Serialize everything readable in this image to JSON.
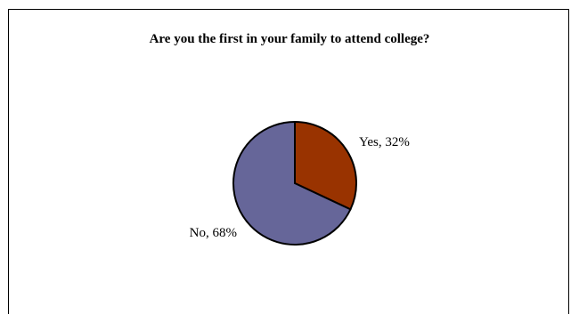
{
  "chart_data": {
    "type": "pie",
    "title": "Are you the first in your family to attend college?",
    "categories": [
      "Yes",
      "No"
    ],
    "values": [
      32,
      68
    ],
    "data_labels": [
      "Yes, 32%",
      "No, 68%"
    ],
    "colors": [
      "#993300",
      "#666699"
    ],
    "legend": "none"
  }
}
